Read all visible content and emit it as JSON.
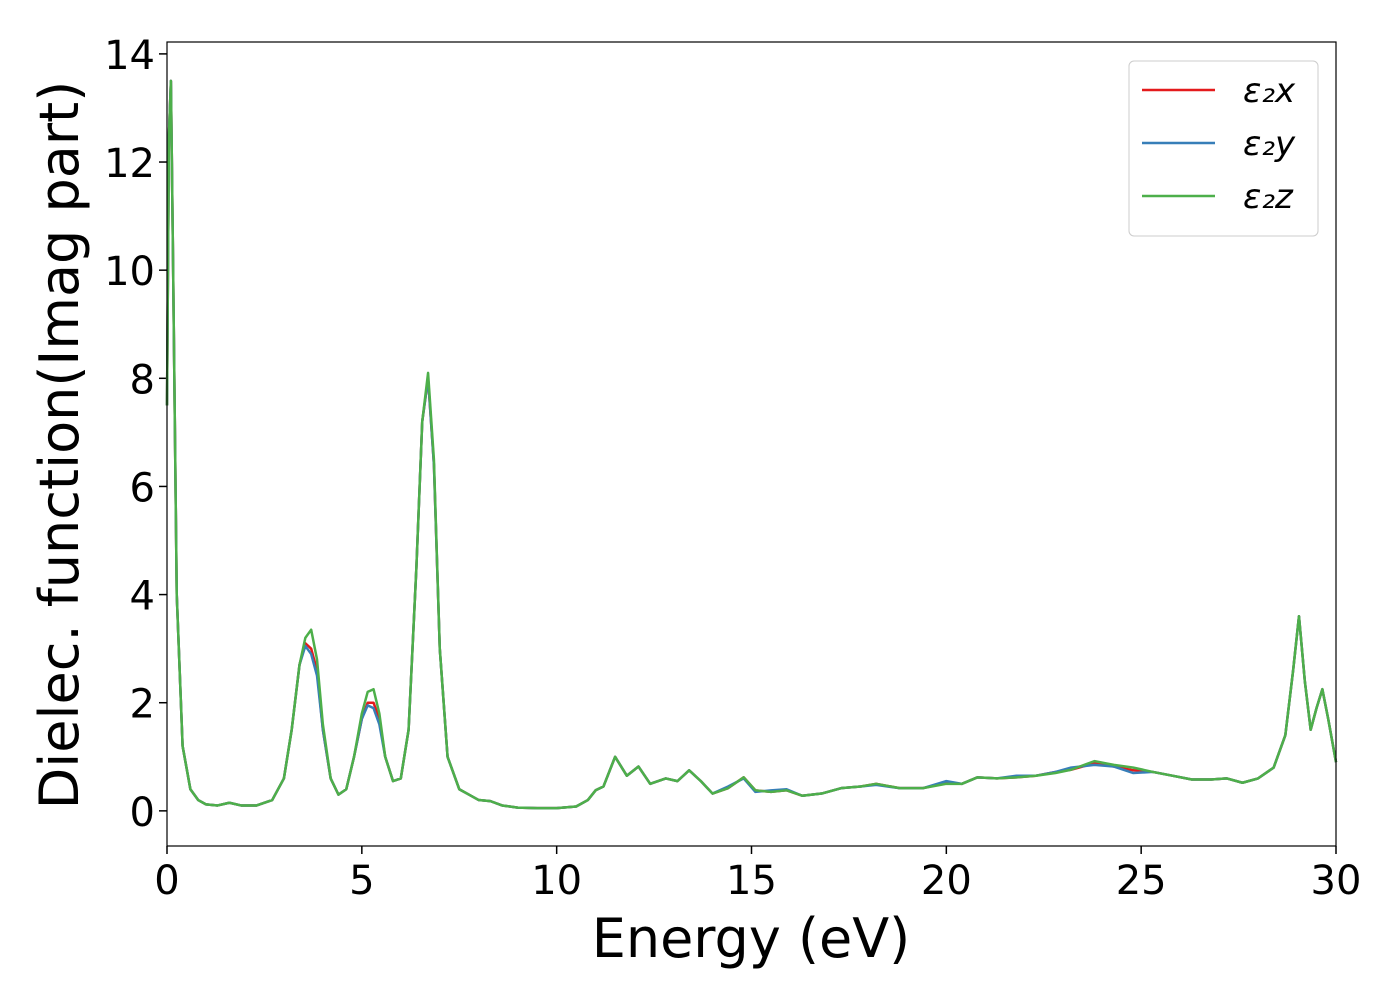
{
  "chart_data": {
    "type": "line",
    "xlabel": "Energy (eV)",
    "ylabel": "Dielec. function(Imag part)",
    "x": [
      0,
      0.05,
      0.1,
      0.15,
      0.25,
      0.4,
      0.6,
      0.8,
      1.0,
      1.3,
      1.6,
      1.9,
      2.3,
      2.7,
      3.0,
      3.2,
      3.4,
      3.55,
      3.7,
      3.85,
      4.0,
      4.2,
      4.4,
      4.6,
      4.8,
      5.0,
      5.15,
      5.3,
      5.45,
      5.6,
      5.8,
      6.0,
      6.2,
      6.4,
      6.55,
      6.7,
      6.85,
      7.0,
      7.2,
      7.5,
      7.7,
      8.0,
      8.3,
      8.6,
      9.0,
      9.5,
      10.0,
      10.5,
      10.8,
      11.0,
      11.2,
      11.5,
      11.8,
      12.1,
      12.4,
      12.8,
      13.1,
      13.4,
      13.7,
      14.0,
      14.4,
      14.8,
      15.1,
      15.5,
      15.9,
      16.3,
      16.8,
      17.3,
      17.8,
      18.2,
      18.8,
      19.4,
      20.0,
      20.4,
      20.8,
      21.3,
      21.8,
      22.3,
      22.8,
      23.2,
      23.8,
      24.3,
      24.8,
      25.3,
      25.8,
      26.3,
      26.8,
      27.2,
      27.6,
      28.0,
      28.4,
      28.7,
      28.9,
      29.05,
      29.2,
      29.35,
      29.5,
      29.65,
      29.8,
      30.0
    ],
    "series": [
      {
        "name": "ε₂x",
        "color": "#e41a1c",
        "values": [
          7.5,
          12.5,
          13.5,
          10.5,
          4,
          1.2,
          0.4,
          0.2,
          0.12,
          0.1,
          0.15,
          0.1,
          0.1,
          0.2,
          0.6,
          1.5,
          2.7,
          3.1,
          3.0,
          2.6,
          1.5,
          0.6,
          0.3,
          0.4,
          1.0,
          1.7,
          2.0,
          2.0,
          1.7,
          1.0,
          0.55,
          0.6,
          1.5,
          4.5,
          7.2,
          8.0,
          6.4,
          3.0,
          1.0,
          0.4,
          0.32,
          0.2,
          0.18,
          0.1,
          0.06,
          0.05,
          0.05,
          0.08,
          0.2,
          0.38,
          0.45,
          1.0,
          0.65,
          0.82,
          0.5,
          0.6,
          0.55,
          0.75,
          0.55,
          0.32,
          0.42,
          0.62,
          0.38,
          0.35,
          0.38,
          0.28,
          0.32,
          0.42,
          0.45,
          0.5,
          0.42,
          0.42,
          0.52,
          0.5,
          0.62,
          0.6,
          0.62,
          0.65,
          0.72,
          0.76,
          0.88,
          0.82,
          0.75,
          0.72,
          0.65,
          0.58,
          0.58,
          0.6,
          0.52,
          0.6,
          0.8,
          1.4,
          2.6,
          3.6,
          2.4,
          1.5,
          1.9,
          2.25,
          1.7,
          0.9
        ]
      },
      {
        "name": "ε₂y",
        "color": "#377eb8",
        "values": [
          7.5,
          12.5,
          13.5,
          10.5,
          4,
          1.2,
          0.4,
          0.2,
          0.12,
          0.1,
          0.15,
          0.1,
          0.1,
          0.2,
          0.6,
          1.5,
          2.7,
          3.05,
          2.9,
          2.5,
          1.5,
          0.6,
          0.3,
          0.4,
          1.0,
          1.7,
          1.95,
          1.9,
          1.6,
          1.0,
          0.55,
          0.6,
          1.5,
          4.5,
          7.2,
          8.0,
          6.4,
          3.0,
          1.0,
          0.4,
          0.32,
          0.2,
          0.18,
          0.1,
          0.06,
          0.05,
          0.05,
          0.08,
          0.2,
          0.38,
          0.45,
          1.0,
          0.65,
          0.82,
          0.5,
          0.6,
          0.55,
          0.75,
          0.55,
          0.32,
          0.45,
          0.6,
          0.35,
          0.38,
          0.4,
          0.28,
          0.32,
          0.42,
          0.45,
          0.48,
          0.42,
          0.42,
          0.55,
          0.5,
          0.62,
          0.6,
          0.65,
          0.65,
          0.72,
          0.8,
          0.85,
          0.82,
          0.7,
          0.72,
          0.65,
          0.58,
          0.58,
          0.6,
          0.52,
          0.6,
          0.8,
          1.4,
          2.6,
          3.6,
          2.4,
          1.5,
          1.9,
          2.25,
          1.7,
          0.9
        ]
      },
      {
        "name": "ε₂z",
        "color": "#4daf4a",
        "values": [
          7.5,
          12.5,
          13.5,
          10.5,
          4,
          1.2,
          0.4,
          0.2,
          0.12,
          0.1,
          0.15,
          0.1,
          0.1,
          0.2,
          0.6,
          1.5,
          2.7,
          3.2,
          3.35,
          2.8,
          1.6,
          0.6,
          0.3,
          0.4,
          1.0,
          1.8,
          2.2,
          2.25,
          1.8,
          1.0,
          0.55,
          0.6,
          1.5,
          4.5,
          7.2,
          8.1,
          6.5,
          3.0,
          1.0,
          0.4,
          0.32,
          0.2,
          0.18,
          0.1,
          0.06,
          0.05,
          0.05,
          0.08,
          0.2,
          0.38,
          0.45,
          1.0,
          0.65,
          0.82,
          0.5,
          0.6,
          0.55,
          0.75,
          0.55,
          0.32,
          0.42,
          0.62,
          0.38,
          0.35,
          0.38,
          0.28,
          0.32,
          0.42,
          0.45,
          0.5,
          0.42,
          0.42,
          0.5,
          0.5,
          0.62,
          0.6,
          0.62,
          0.65,
          0.7,
          0.76,
          0.92,
          0.85,
          0.8,
          0.72,
          0.65,
          0.58,
          0.58,
          0.6,
          0.52,
          0.6,
          0.8,
          1.4,
          2.6,
          3.6,
          2.4,
          1.5,
          1.9,
          2.25,
          1.7,
          0.9
        ]
      }
    ],
    "xlim": [
      0,
      30
    ],
    "xticks": [
      0,
      5,
      10,
      15,
      20,
      25,
      30
    ],
    "ylim": [
      -0.65,
      14.22
    ],
    "yticks": [
      0,
      2,
      4,
      6,
      8,
      10,
      12,
      14
    ],
    "legend": "upper right"
  }
}
